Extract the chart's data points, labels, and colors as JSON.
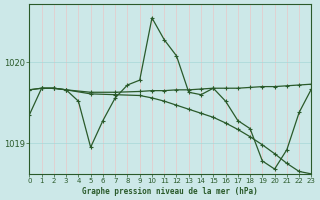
{
  "title": "Graphe pression niveau de la mer (hPa)",
  "bg_color": "#cce8e8",
  "grid_color_v": "#e8c8c8",
  "grid_color_h": "#a8d8d8",
  "line_color": "#2a5a2a",
  "xlim": [
    0,
    23
  ],
  "ylim": [
    1018.62,
    1020.72
  ],
  "yticks": [
    1019.0,
    1020.0
  ],
  "xticks": [
    0,
    1,
    2,
    3,
    4,
    5,
    6,
    7,
    8,
    9,
    10,
    11,
    12,
    13,
    14,
    15,
    16,
    17,
    18,
    19,
    20,
    21,
    22,
    23
  ],
  "line1_x": [
    0,
    1,
    2,
    3,
    4,
    5,
    6,
    7,
    8,
    9,
    10,
    11,
    12,
    13,
    14,
    15,
    16,
    17,
    18,
    19,
    20,
    21,
    22,
    23
  ],
  "line1_y": [
    1019.35,
    1019.68,
    1019.68,
    1019.66,
    1019.52,
    1018.95,
    1019.28,
    1019.56,
    1019.72,
    1019.78,
    1020.55,
    1020.28,
    1020.08,
    1019.63,
    1019.6,
    1019.68,
    1019.52,
    1019.28,
    1019.18,
    1018.78,
    1018.68,
    1018.92,
    1019.38,
    1019.67
  ],
  "line2_x": [
    0,
    1,
    2,
    3,
    5,
    7,
    9,
    10,
    11,
    12,
    13,
    14,
    15,
    16,
    17,
    18,
    19,
    20,
    21,
    22,
    23
  ],
  "line2_y": [
    1019.66,
    1019.68,
    1019.68,
    1019.66,
    1019.63,
    1019.63,
    1019.64,
    1019.65,
    1019.65,
    1019.66,
    1019.66,
    1019.67,
    1019.68,
    1019.68,
    1019.68,
    1019.69,
    1019.7,
    1019.7,
    1019.71,
    1019.72,
    1019.73
  ],
  "line3_x": [
    0,
    1,
    2,
    3,
    5,
    7,
    9,
    10,
    11,
    12,
    13,
    14,
    15,
    16,
    17,
    18,
    19,
    20,
    21,
    22,
    23
  ],
  "line3_y": [
    1019.66,
    1019.68,
    1019.68,
    1019.66,
    1019.61,
    1019.6,
    1019.59,
    1019.56,
    1019.52,
    1019.47,
    1019.42,
    1019.37,
    1019.32,
    1019.25,
    1019.17,
    1019.08,
    1018.98,
    1018.87,
    1018.75,
    1018.65,
    1018.62
  ]
}
